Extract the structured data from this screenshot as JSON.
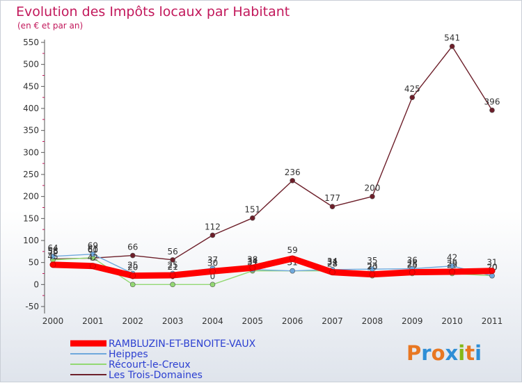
{
  "chart_data": {
    "type": "line",
    "title": "Evolution des Impôts locaux par Habitant",
    "subtitle": "(en € et par an)",
    "xlabel": "",
    "ylabel": "",
    "categories": [
      "2000",
      "2001",
      "2002",
      "2003",
      "2004",
      "2005",
      "2006",
      "2007",
      "2008",
      "2009",
      "2010",
      "2011"
    ],
    "ylim": [
      -50,
      550
    ],
    "yticks": [
      -50,
      0,
      50,
      100,
      150,
      200,
      250,
      300,
      350,
      400,
      450,
      500,
      550
    ],
    "grid": false,
    "legend_position": "bottom-left",
    "series": [
      {
        "name": "RAMBLUZIN-ET-BENOITE-VAUX",
        "color": "#ff0000",
        "values": [
          45,
          42,
          20,
          21,
          30,
          38,
          59,
          28,
          23,
          28,
          29,
          31
        ]
      },
      {
        "name": "Heippes",
        "color": "#6fa8dc",
        "values": [
          64,
          69,
          25,
          25,
          37,
          34,
          31,
          34,
          35,
          36,
          42,
          20
        ]
      },
      {
        "name": "Récourt-le-Creux",
        "color": "#93d873",
        "values": [
          56,
          61,
          0,
          0,
          0,
          31,
          31,
          31,
          20,
          25,
          25,
          20
        ]
      },
      {
        "name": "Les Trois-Domaines",
        "color": "#6d1f2a",
        "values": [
          58,
          60,
          66,
          56,
          112,
          151,
          236,
          177,
          200,
          425,
          541,
          396
        ]
      }
    ]
  },
  "brand": {
    "name": "Proxiti"
  }
}
